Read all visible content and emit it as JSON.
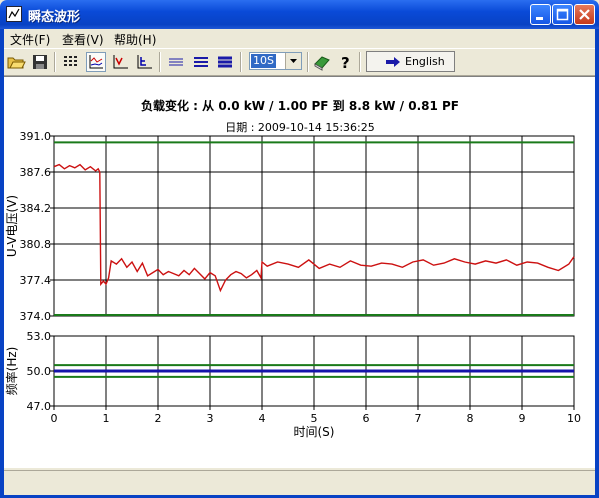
{
  "window": {
    "title": "瞬态波形"
  },
  "menu": {
    "file": "文件(F)",
    "view": "查看(V)",
    "help": "帮助(H)"
  },
  "toolbar": {
    "time_range": "10S",
    "english_label": "English",
    "icons": [
      "open-icon",
      "save-icon",
      "table-icon",
      "chart-multi-icon",
      "chart-volt-icon",
      "chart-freq-icon",
      "line-thin-icon",
      "line-medium-icon",
      "line-thick-icon",
      "book-icon",
      "help-icon",
      "arrow-right-icon"
    ]
  },
  "chart_header": {
    "title": "负载变化 : 从 0.0 kW  /  1.00 PF   到  8.8 kW  /  0.81 PF",
    "date": "日期 : 2009-10-14   15:36:25"
  },
  "chart_data": [
    {
      "type": "line",
      "ylabel": "U-V电压(V)",
      "xlabel": "时间(S)",
      "ylim": [
        374.0,
        391.0
      ],
      "y_ticks": [
        "391.0",
        "387.6",
        "384.2",
        "380.8",
        "377.4",
        "374.0"
      ],
      "x_ticks": [
        "0",
        "1",
        "2",
        "3",
        "4",
        "5",
        "6",
        "7",
        "8",
        "9",
        "10"
      ],
      "xlim": [
        0,
        10
      ],
      "limits": [
        {
          "name": "upper-limit",
          "value": 390.4,
          "color": "#1a7a1a"
        },
        {
          "name": "lower-limit",
          "value": 374.1,
          "color": "#1a7a1a"
        }
      ],
      "series": [
        {
          "name": "U-V voltage",
          "color": "#cc1111",
          "x": [
            0,
            0.1,
            0.2,
            0.3,
            0.4,
            0.5,
            0.6,
            0.7,
            0.8,
            0.85,
            0.88,
            0.9,
            0.95,
            1.0,
            1.05,
            1.1,
            1.2,
            1.3,
            1.4,
            1.5,
            1.6,
            1.7,
            1.8,
            1.9,
            2.0,
            2.1,
            2.2,
            2.3,
            2.4,
            2.5,
            2.6,
            2.7,
            2.8,
            2.9,
            3.0,
            3.1,
            3.2,
            3.3,
            3.4,
            3.5,
            3.6,
            3.7,
            3.8,
            3.9,
            3.98,
            4.0,
            4.1,
            4.3,
            4.5,
            4.7,
            4.9,
            5.1,
            5.3,
            5.5,
            5.7,
            5.9,
            6.1,
            6.3,
            6.5,
            6.7,
            6.9,
            7.1,
            7.3,
            7.5,
            7.7,
            7.9,
            8.1,
            8.3,
            8.5,
            8.7,
            8.9,
            9.1,
            9.3,
            9.5,
            9.7,
            9.9,
            10.0
          ],
          "values": [
            388.1,
            388.3,
            387.9,
            388.2,
            388.0,
            388.3,
            387.8,
            388.1,
            387.7,
            387.9,
            387.6,
            377.0,
            377.3,
            377.0,
            377.6,
            379.2,
            378.9,
            379.4,
            378.6,
            379.1,
            378.2,
            379.0,
            377.8,
            378.1,
            378.4,
            377.9,
            378.2,
            378.0,
            377.8,
            378.3,
            377.9,
            378.5,
            378.0,
            377.5,
            378.1,
            377.8,
            376.4,
            377.4,
            377.9,
            378.2,
            378.0,
            377.6,
            377.9,
            378.3,
            377.6,
            379.1,
            378.7,
            379.1,
            378.9,
            378.6,
            379.3,
            378.5,
            378.9,
            378.6,
            379.2,
            378.8,
            378.7,
            379.0,
            378.9,
            378.6,
            379.1,
            379.3,
            378.8,
            379.0,
            379.4,
            379.1,
            378.9,
            379.2,
            379.0,
            379.3,
            378.8,
            379.1,
            379.0,
            378.6,
            378.3,
            378.9,
            379.6
          ]
        }
      ]
    },
    {
      "type": "line",
      "ylabel": "频率(Hz)",
      "xlabel": "时间(S)",
      "ylim": [
        47.0,
        53.0
      ],
      "y_ticks": [
        "53.0",
        "50.0",
        "47.0"
      ],
      "xlim": [
        0,
        10
      ],
      "limits": [
        {
          "name": "upper-limit",
          "value": 50.5,
          "color": "#1a7a1a"
        },
        {
          "name": "lower-limit",
          "value": 49.5,
          "color": "#1a7a1a"
        }
      ],
      "series": [
        {
          "name": "frequency",
          "color": "#1414aa",
          "x": [
            0,
            10
          ],
          "values": [
            50.0,
            50.0
          ]
        }
      ]
    }
  ]
}
